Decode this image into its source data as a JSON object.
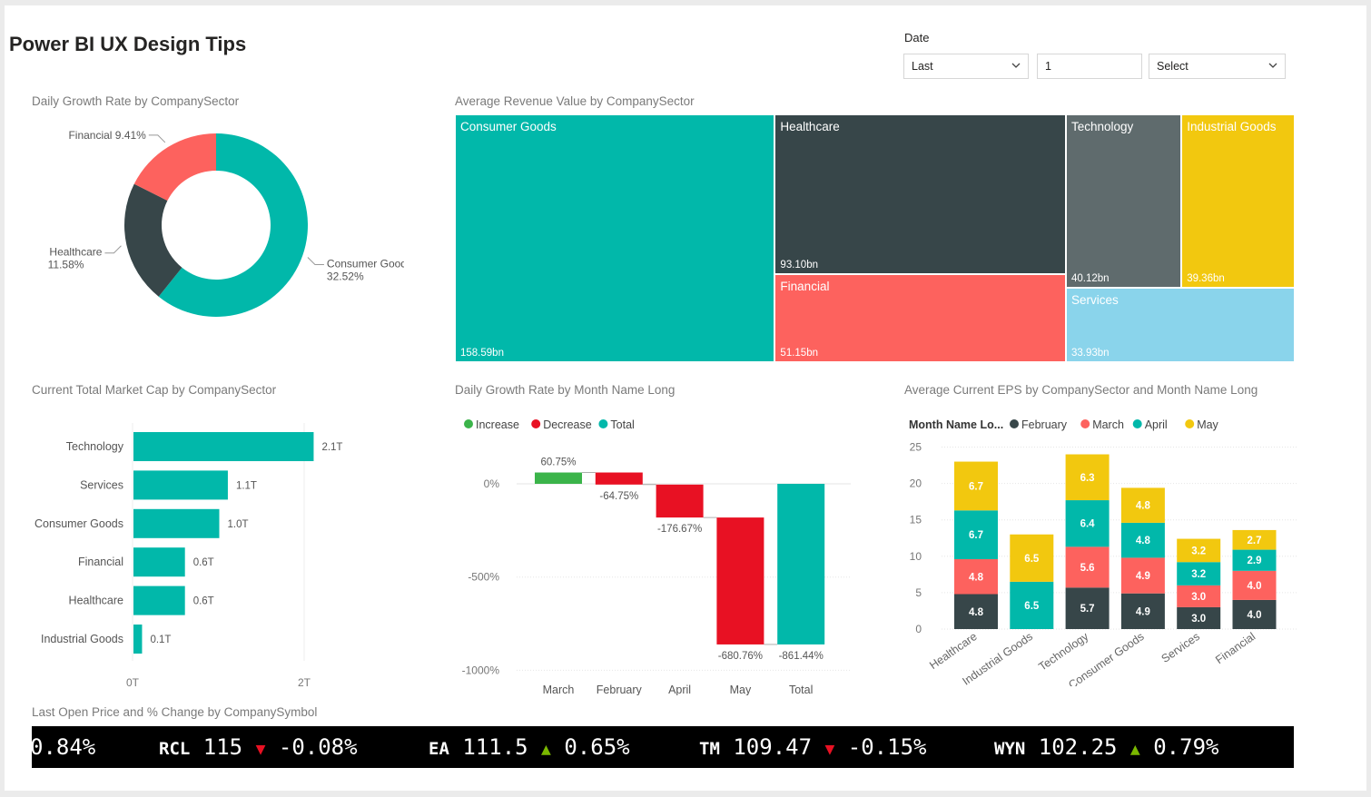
{
  "page": {
    "title": "Power BI UX Design Tips"
  },
  "slicer": {
    "label": "Date",
    "relative": "Last",
    "count": "1",
    "period": "Select"
  },
  "colors": {
    "teal": "#01b8aa",
    "dark": "#374649",
    "red": "#fd625e",
    "yellow": "#f2c80f",
    "grey": "#5f6b6d",
    "light_blue": "#8ad4eb",
    "increase": "#3bb44a",
    "decrease": "#e81123"
  },
  "titles": {
    "donut": "Daily Growth Rate by CompanySector",
    "treemap": "Average Revenue Value by CompanySector",
    "bar": "Current Total Market Cap by CompanySector",
    "waterfall": "Daily Growth Rate by Month Name Long",
    "stacked": "Average Current EPS by CompanySector and Month Name Long",
    "ticker": "Last Open Price and % Change by CompanySymbol"
  },
  "ticker": {
    "items": [
      {
        "symbol": "",
        "price": "",
        "arrow": "",
        "change": "0.84%"
      },
      {
        "symbol": "RCL",
        "price": "115",
        "arrow": "down",
        "change": "-0.08%"
      },
      {
        "symbol": "EA",
        "price": "111.5",
        "arrow": "up",
        "change": "0.65%"
      },
      {
        "symbol": "TM",
        "price": "109.47",
        "arrow": "down",
        "change": "-0.15%"
      },
      {
        "symbol": "WYN",
        "price": "102.25",
        "arrow": "up",
        "change": "0.79%"
      }
    ]
  },
  "chart_data": [
    {
      "id": "donut",
      "type": "pie",
      "title": "Daily Growth Rate by CompanySector",
      "slices": [
        {
          "label": "Consumer Goods",
          "value": 32.52,
          "display": "32.52%",
          "color": "#01b8aa"
        },
        {
          "label": "Healthcare",
          "value": 11.58,
          "display": "11.58%",
          "color": "#374649"
        },
        {
          "label": "Financial",
          "value": 9.41,
          "display": "9.41%",
          "color": "#fd625e"
        }
      ]
    },
    {
      "id": "treemap",
      "type": "treemap",
      "title": "Average Revenue Value by CompanySector",
      "items": [
        {
          "label": "Consumer Goods",
          "value": 158.59,
          "display": "158.59bn",
          "color": "#01b8aa"
        },
        {
          "label": "Healthcare",
          "value": 93.1,
          "display": "93.10bn",
          "color": "#374649"
        },
        {
          "label": "Financial",
          "value": 51.15,
          "display": "51.15bn",
          "color": "#fd625e"
        },
        {
          "label": "Technology",
          "value": 40.12,
          "display": "40.12bn",
          "color": "#5f6b6d"
        },
        {
          "label": "Industrial Goods",
          "value": 39.36,
          "display": "39.36bn",
          "color": "#f2c80f"
        },
        {
          "label": "Services",
          "value": 33.93,
          "display": "33.93bn",
          "color": "#8ad4eb"
        }
      ]
    },
    {
      "id": "bar",
      "type": "bar",
      "orientation": "horizontal",
      "title": "Current Total Market Cap by CompanySector",
      "categories": [
        "Technology",
        "Services",
        "Consumer Goods",
        "Financial",
        "Healthcare",
        "Industrial Goods"
      ],
      "values": [
        2.1,
        1.1,
        1.0,
        0.6,
        0.6,
        0.1
      ],
      "value_labels": [
        "2.1T",
        "1.1T",
        "1.0T",
        "0.6T",
        "0.6T",
        "0.1T"
      ],
      "xticks": [
        "0T",
        "2T"
      ],
      "xlim": [
        0,
        2.2
      ],
      "color": "#01b8aa"
    },
    {
      "id": "waterfall",
      "type": "bar",
      "subtype": "waterfall",
      "title": "Daily Growth Rate by Month Name Long",
      "legend": [
        "Increase",
        "Decrease",
        "Total"
      ],
      "categories": [
        "March",
        "February",
        "April",
        "May",
        "Total"
      ],
      "values": [
        60.75,
        -64.75,
        -176.67,
        -680.76,
        -861.44
      ],
      "value_labels": [
        "60.75%",
        "-64.75%",
        "-176.67%",
        "-680.76%",
        "-861.44%"
      ],
      "kinds": [
        "increase",
        "decrease",
        "decrease",
        "decrease",
        "total"
      ],
      "yticks": [
        "0%",
        "-500%",
        "-1000%"
      ],
      "ylim": [
        -1000,
        100
      ]
    },
    {
      "id": "stacked",
      "type": "bar",
      "subtype": "stacked",
      "title": "Average Current EPS by CompanySector and Month Name Long",
      "legend_title": "Month Name Lo...",
      "categories": [
        "Healthcare",
        "Industrial Goods",
        "Technology",
        "Consumer Goods",
        "Services",
        "Financial"
      ],
      "series": [
        {
          "name": "February",
          "color": "#374649",
          "values": [
            4.8,
            null,
            5.7,
            4.9,
            3.0,
            4.0
          ],
          "labels": [
            "4.8",
            "",
            "5.7",
            "4.9",
            "3.0",
            "4.0"
          ]
        },
        {
          "name": "March",
          "color": "#fd625e",
          "values": [
            4.8,
            null,
            5.6,
            4.9,
            3.0,
            4.0
          ],
          "labels": [
            "4.8",
            "",
            "5.6",
            "4.9",
            "3.0",
            "4.0"
          ]
        },
        {
          "name": "April",
          "color": "#01b8aa",
          "values": [
            6.7,
            6.5,
            6.4,
            4.8,
            3.2,
            2.9
          ],
          "labels": [
            "6.7",
            "6.5",
            "6.4",
            "4.8",
            "3.2",
            "2.9"
          ]
        },
        {
          "name": "May",
          "color": "#f2c80f",
          "values": [
            6.7,
            6.5,
            6.3,
            4.8,
            3.2,
            2.7
          ],
          "labels": [
            "6.7",
            "6.5",
            "6.3",
            "4.8",
            "3.2",
            "2.7"
          ]
        }
      ],
      "yticks": [
        "0",
        "5",
        "10",
        "15",
        "20",
        "25"
      ],
      "ylim": [
        0,
        25
      ]
    }
  ]
}
